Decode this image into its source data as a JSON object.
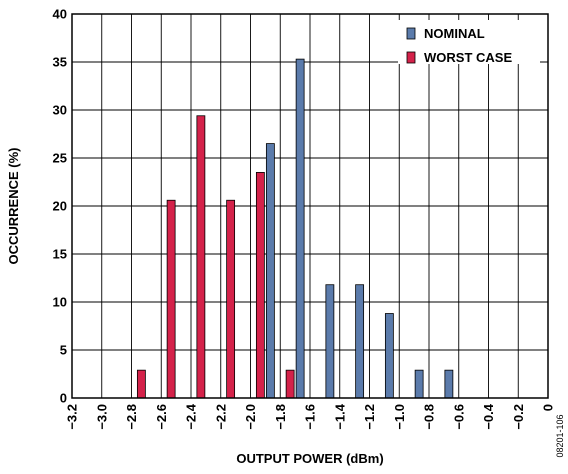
{
  "chart_data": {
    "type": "bar",
    "xlabel": "OUTPUT POWER (dBm)",
    "ylabel": "OCCURRENCE (%)",
    "xlim": [
      -3.2,
      0
    ],
    "ylim": [
      0,
      40
    ],
    "x_ticks": [
      "−3.2",
      "−3.0",
      "−2.8",
      "−2.6",
      "−2.4",
      "−2.2",
      "−2.0",
      "−1.8",
      "−1.6",
      "−1.4",
      "−1.2",
      "−1.0",
      "−0.8",
      "−0.6",
      "−0.4",
      "−0.2",
      "0"
    ],
    "y_ticks": [
      "0",
      "5",
      "10",
      "15",
      "20",
      "25",
      "30",
      "35",
      "40"
    ],
    "grid": true,
    "legend_position": "top-right",
    "series": [
      {
        "name": "NOMINAL",
        "color": "#5b7bab",
        "points": [
          {
            "x": -1.9,
            "y": 26.5
          },
          {
            "x": -1.7,
            "y": 35.3
          },
          {
            "x": -1.5,
            "y": 11.8
          },
          {
            "x": -1.3,
            "y": 11.8
          },
          {
            "x": -1.1,
            "y": 8.8
          },
          {
            "x": -0.9,
            "y": 2.9
          },
          {
            "x": -0.7,
            "y": 2.9
          }
        ]
      },
      {
        "name": "WORST CASE",
        "color": "#d4224a",
        "points": [
          {
            "x": -2.7,
            "y": 2.9
          },
          {
            "x": -2.5,
            "y": 20.6
          },
          {
            "x": -2.3,
            "y": 29.4
          },
          {
            "x": -2.1,
            "y": 20.6
          },
          {
            "x": -1.9,
            "y": 23.5
          },
          {
            "x": -1.7,
            "y": 2.9
          }
        ]
      }
    ],
    "figure_code": "08201-106"
  }
}
